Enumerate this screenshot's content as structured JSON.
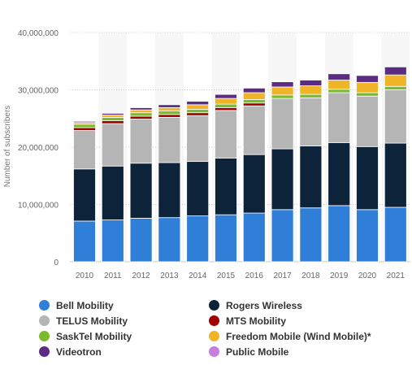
{
  "chart_data": {
    "type": "bar",
    "stacked": true,
    "ylabel": "Number of subscribers",
    "xlabel": "",
    "ylim": [
      0,
      40000000
    ],
    "yticks": [
      0,
      10000000,
      20000000,
      30000000,
      40000000
    ],
    "ytick_labels": [
      "0",
      "10,000,000",
      "20,000,000",
      "30,000,000",
      "40,000,000"
    ],
    "grid": true,
    "legend_position": "bottom",
    "categories": [
      "2010",
      "2011",
      "2012",
      "2013",
      "2014",
      "2015",
      "2016",
      "2017",
      "2018",
      "2019",
      "2020",
      "2021"
    ],
    "series": [
      {
        "name": "Bell Mobility",
        "color": "#2f7ed8",
        "values": [
          7100000,
          7300000,
          7600000,
          7700000,
          8000000,
          8200000,
          8500000,
          9100000,
          9400000,
          9800000,
          9100000,
          9500000
        ]
      },
      {
        "name": "Rogers Wireless",
        "color": "#0d233a",
        "values": [
          9100000,
          9400000,
          9600000,
          9600000,
          9500000,
          9900000,
          10200000,
          10600000,
          10800000,
          11000000,
          11000000,
          11200000
        ]
      },
      {
        "name": "TELUS Mobility",
        "color": "#b5b5b5",
        "values": [
          6700000,
          7400000,
          7700000,
          7900000,
          8000000,
          8300000,
          8500000,
          8800000,
          8400000,
          8700000,
          8800000,
          9300000
        ]
      },
      {
        "name": "MTS Mobility",
        "color": "#a10000",
        "values": [
          500000,
          500000,
          500000,
          500000,
          500000,
          500000,
          500000,
          0,
          0,
          0,
          0,
          0
        ]
      },
      {
        "name": "SaskTel Mobility",
        "color": "#7cbb2c",
        "values": [
          600000,
          600000,
          600000,
          600000,
          600000,
          600000,
          600000,
          600000,
          600000,
          600000,
          600000,
          600000
        ]
      },
      {
        "name": "Freedom Mobile (Wind Mobile)*",
        "color": "#f0b429",
        "values": [
          300000,
          400000,
          500000,
          600000,
          800000,
          1000000,
          1200000,
          1400000,
          1500000,
          1600000,
          1800000,
          2000000
        ]
      },
      {
        "name": "Videotron",
        "color": "#5b2c82",
        "values": [
          200000,
          300000,
          400000,
          500000,
          600000,
          700000,
          800000,
          900000,
          1000000,
          1100000,
          1200000,
          1400000
        ]
      },
      {
        "name": "Public Mobile",
        "color": "#c77dde",
        "values": [
          0,
          0,
          100000,
          0,
          0,
          0,
          0,
          0,
          0,
          0,
          0,
          0
        ]
      }
    ]
  }
}
